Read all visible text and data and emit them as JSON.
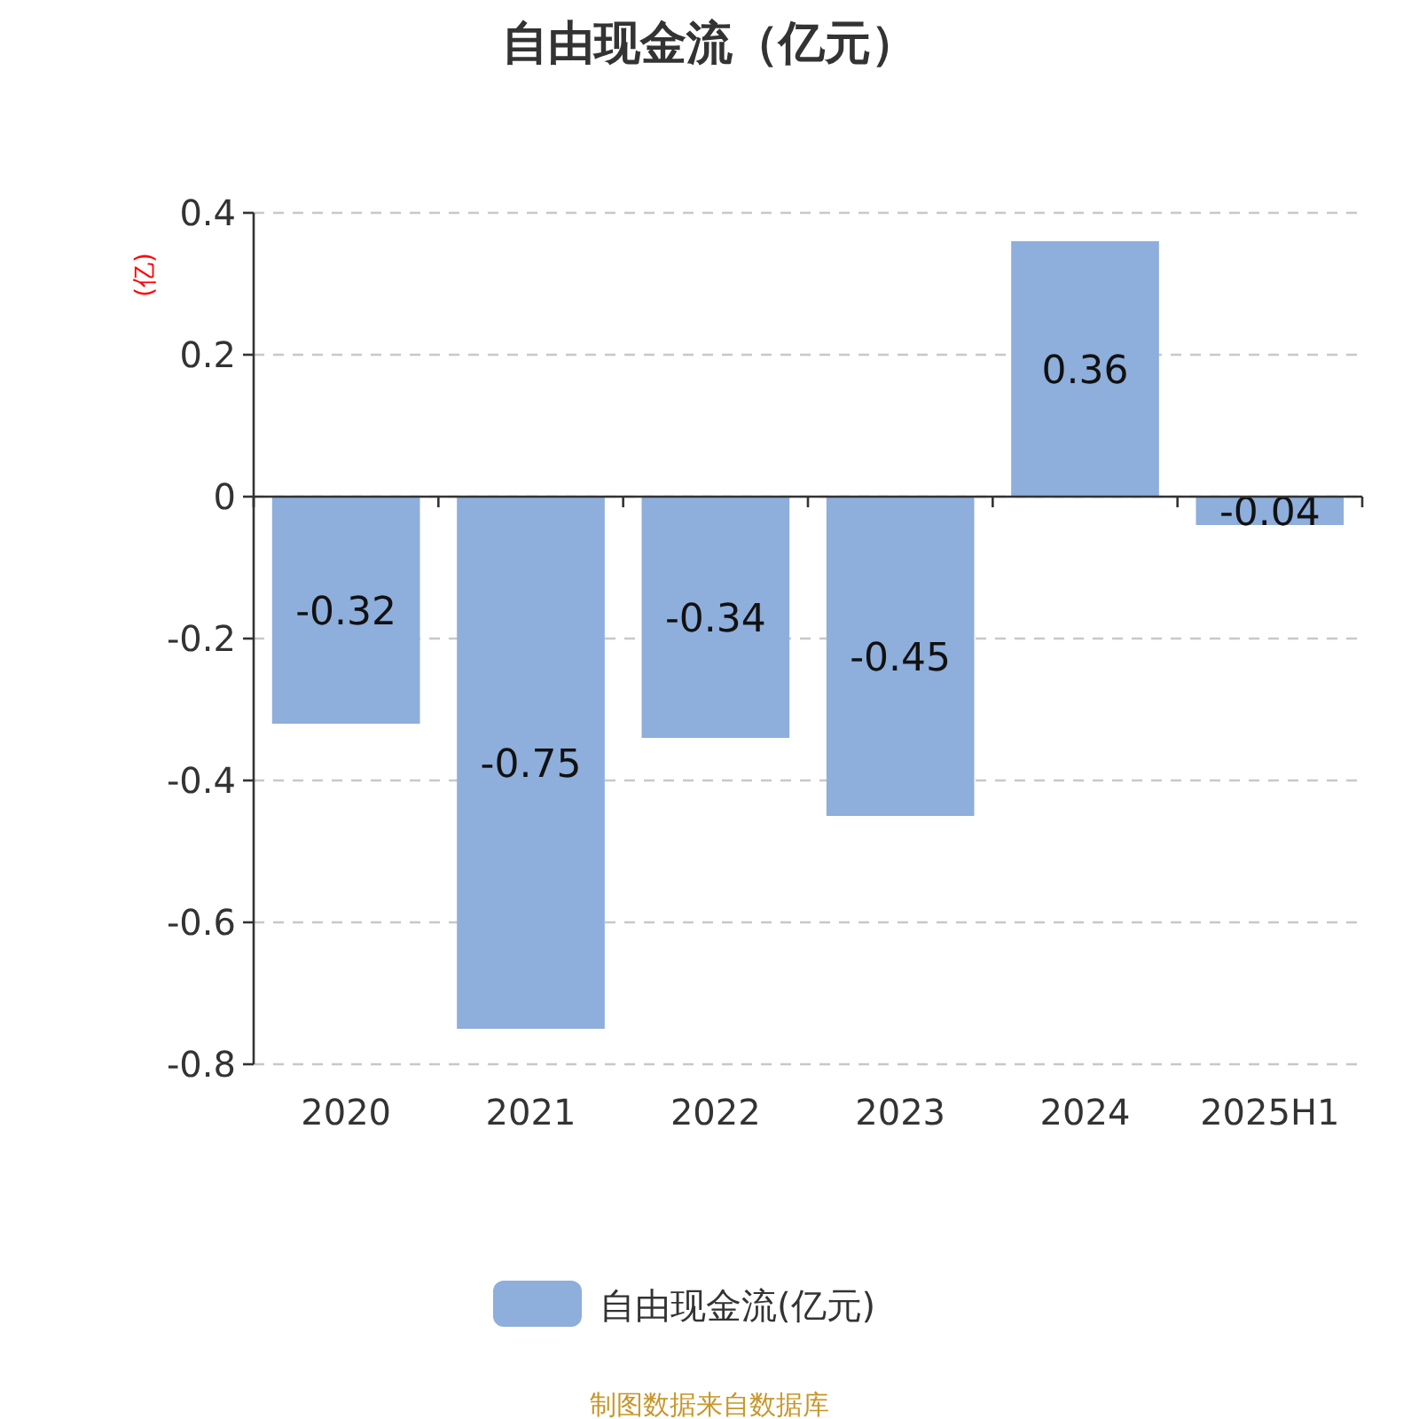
{
  "chart_data": {
    "type": "bar",
    "title": "自由现金流（亿元）",
    "ylabel": "(亿)",
    "categories": [
      "2020",
      "2021",
      "2022",
      "2023",
      "2024",
      "2025H1"
    ],
    "series": [
      {
        "name": "自由现金流(亿元)",
        "color": "#8eaedb",
        "values": [
          -0.32,
          -0.75,
          -0.34,
          -0.45,
          0.36,
          -0.04
        ]
      }
    ],
    "ylim": [
      -0.8,
      0.4
    ],
    "yticks": [
      0.4,
      0.2,
      0,
      -0.2,
      -0.4,
      -0.6,
      -0.8
    ],
    "grid": "y",
    "legend": "bottom",
    "data_labels": true,
    "annotations": [
      "制图数据来自数据库"
    ]
  }
}
